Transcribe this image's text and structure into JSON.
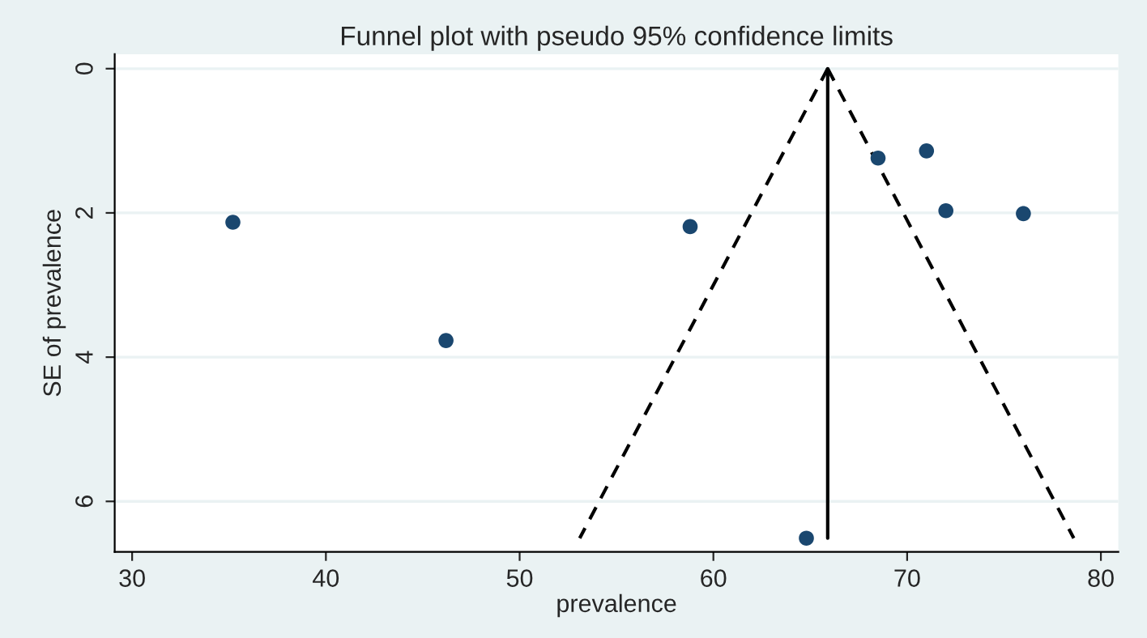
{
  "chart_data": {
    "type": "scatter",
    "title": "Funnel plot with pseudo 95% confidence limits",
    "xlabel": "prevalence",
    "ylabel": "SE of prevalence",
    "series": [
      {
        "color": "#1a476f",
        "marker": "circle",
        "x": [
          35.2,
          46.2,
          58.8,
          68.5,
          71.0,
          72.0,
          76.0,
          64.8
        ],
        "values": [
          2.13,
          3.77,
          2.19,
          1.24,
          1.14,
          1.97,
          2.01,
          6.51
        ]
      },
      {
        "type": "line",
        "color": "#000000",
        "line_style": "dashed",
        "marker": "none",
        "x": [
          65.9,
          53.1
        ],
        "values": [
          0,
          6.51
        ]
      },
      {
        "type": "line",
        "color": "#000000",
        "line_style": "dashed",
        "marker": "none",
        "x": [
          65.9,
          78.6
        ],
        "values": [
          0,
          6.51
        ]
      },
      {
        "type": "line",
        "color": "#000000",
        "line_style": "solid",
        "marker": "none",
        "x": [
          65.9,
          65.9
        ],
        "values": [
          0,
          6.51
        ]
      }
    ],
    "xlim": [
      29.1,
      80.9
    ],
    "xticks": [
      30,
      40,
      50,
      60,
      70,
      80
    ],
    "ylim": [
      6.7,
      -0.2
    ],
    "yticks": [
      0,
      2,
      4,
      6
    ],
    "grid": "y",
    "legend": false
  }
}
